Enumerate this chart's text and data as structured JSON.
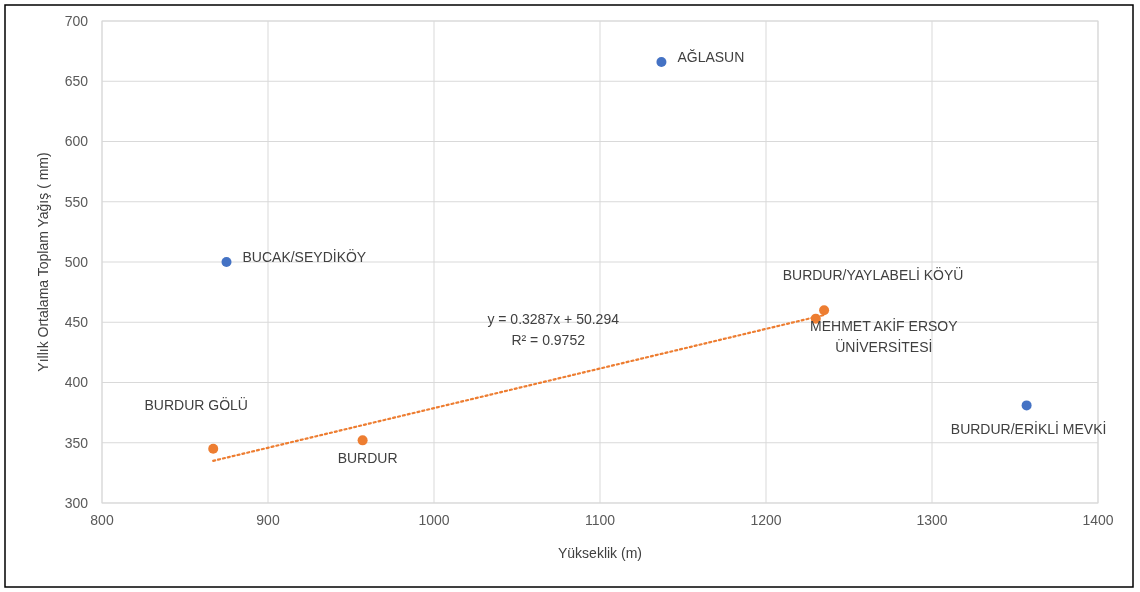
{
  "chart_data": {
    "type": "scatter",
    "xlabel": "Yükseklik (m)",
    "ylabel": "Yıllık Ortalama Toplam Yağış ( mm)",
    "xlim": [
      800,
      1400
    ],
    "xticks": [
      800,
      900,
      1000,
      1100,
      1200,
      1300,
      1400
    ],
    "ylim": [
      300,
      700
    ],
    "yticks": [
      300,
      350,
      400,
      450,
      500,
      550,
      600,
      650,
      700
    ],
    "grid": true,
    "series": [
      {
        "marker": "circle",
        "color": "#4472c4",
        "x": [
          1137,
          875,
          1357
        ],
        "values": [
          666,
          500,
          381
        ]
      },
      {
        "marker": "circle",
        "color": "#ed7d31",
        "x": [
          867,
          957,
          1235,
          1230
        ],
        "values": [
          345,
          352,
          460,
          453
        ]
      },
      {
        "type": "line",
        "line_style": "dotted",
        "color": "#ed7d31",
        "x": [
          867,
          1235
        ],
        "values": [
          335,
          456
        ]
      }
    ],
    "annotations": [
      {
        "text": "AĞLASUN",
        "x": 1137,
        "y": 666
      },
      {
        "text": "BUCAK/SEYDİKÖY",
        "x": 875,
        "y": 500
      },
      {
        "text": "BURDUR/ERİKLİ MEVKİ",
        "x": 1357,
        "y": 381
      },
      {
        "text": "BURDUR GÖLÜ",
        "x": 867,
        "y": 345
      },
      {
        "text": "BURDUR",
        "x": 957,
        "y": 352
      },
      {
        "text": "BURDUR/YAYLABELİ KÖYÜ",
        "x": 1235,
        "y": 460
      },
      {
        "text": "MEHMET AKİF ERSOY\nÜNİVERSİTESİ",
        "x": 1230,
        "y": 453
      },
      "y = 0.3287x + 50.294",
      "R² = 0.9752"
    ]
  }
}
